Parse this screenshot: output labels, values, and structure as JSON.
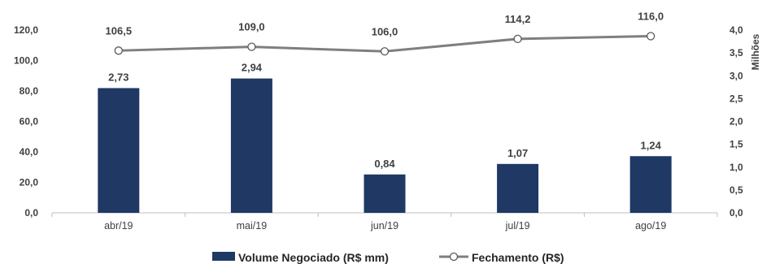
{
  "chart_data": {
    "type": "bar+line",
    "categories": [
      "abr/19",
      "mai/19",
      "jun/19",
      "jul/19",
      "ago/19"
    ],
    "series": [
      {
        "name": "Volume Negociado (R$ mm)",
        "type": "bar",
        "axis": "right",
        "values": [
          2.73,
          2.94,
          0.84,
          1.07,
          1.24
        ],
        "labels": [
          "2,73",
          "2,94",
          "0,84",
          "1,07",
          "1,24"
        ],
        "color": "#1f3864"
      },
      {
        "name": "Fechamento (R$)",
        "type": "line",
        "axis": "left",
        "values": [
          106.5,
          109.0,
          106.0,
          114.2,
          116.0
        ],
        "labels": [
          "106,5",
          "109,0",
          "106,0",
          "114,2",
          "116,0"
        ],
        "color": "#7f7f7f"
      }
    ],
    "y_left": {
      "ylim": [
        0,
        120
      ],
      "ticks": [
        0,
        20,
        40,
        60,
        80,
        100,
        120
      ],
      "tick_labels": [
        "0,0",
        "20,0",
        "40,0",
        "60,0",
        "80,0",
        "100,0",
        "120,0"
      ]
    },
    "y_right": {
      "ylim": [
        0,
        4
      ],
      "ticks": [
        0,
        0.5,
        1,
        1.5,
        2,
        2.5,
        3,
        3.5,
        4
      ],
      "tick_labels": [
        "0,0",
        "0,5",
        "1,0",
        "1,5",
        "2,0",
        "2,5",
        "3,0",
        "3,5",
        "4,0"
      ],
      "label": "Milhões"
    },
    "legend": "bottom",
    "grid": false
  }
}
